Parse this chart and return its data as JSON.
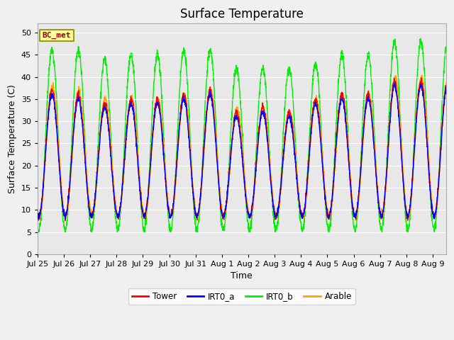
{
  "title": "Surface Temperature",
  "ylabel": "Surface Temperature (C)",
  "xlabel": "Time",
  "ylim": [
    0,
    52
  ],
  "yticks": [
    0,
    5,
    10,
    15,
    20,
    25,
    30,
    35,
    40,
    45,
    50
  ],
  "annotation_text": "BC_met",
  "annotation_color": "#8B0000",
  "annotation_bg": "#FFFF99",
  "annotation_edge": "#888800",
  "bg_color": "#F0F0F0",
  "plot_bg": "#E8E8E8",
  "grid_color": "#FFFFFF",
  "line_colors": {
    "Tower": "#FF0000",
    "IRT0_a": "#0000FF",
    "IRT0_b": "#00EE00",
    "Arable": "#FFA500"
  },
  "legend_labels": [
    "Tower",
    "IRT0_a",
    "IRT0_b",
    "Arable"
  ],
  "n_days": 15.5,
  "points_per_day": 144,
  "day_labels": [
    "Jul 25",
    "Jul 26",
    "Jul 27",
    "Jul 28",
    "Jul 29",
    "Jul 30",
    "Jul 31",
    "Aug 1",
    "Aug 2",
    "Aug 3",
    "Aug 4",
    "Aug 5",
    "Aug 6",
    "Aug 7",
    "Aug 8",
    "Aug 9"
  ],
  "title_fontsize": 12,
  "axis_fontsize": 9,
  "tick_fontsize": 8,
  "linewidth": 1.0
}
